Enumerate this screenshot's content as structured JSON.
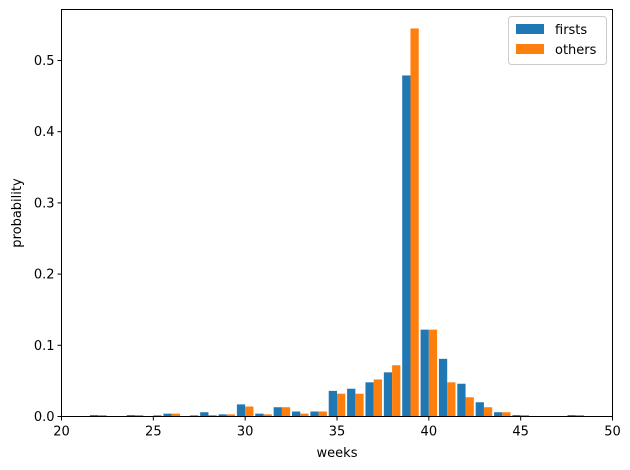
{
  "chart_data": {
    "type": "bar",
    "title": "",
    "xlabel": "weeks",
    "ylabel": "probability",
    "xlim": [
      20,
      50
    ],
    "ylim": [
      0,
      0.57
    ],
    "xticks": [
      20,
      25,
      30,
      35,
      40,
      45,
      50
    ],
    "xtick_labels": [
      "20",
      "25",
      "30",
      "35",
      "40",
      "45",
      "50"
    ],
    "yticks": [
      0.0,
      0.1,
      0.2,
      0.3,
      0.4,
      0.5
    ],
    "ytick_labels": [
      "0.0",
      "0.1",
      "0.2",
      "0.3",
      "0.4",
      "0.5"
    ],
    "grid": false,
    "legend_position": "upper right",
    "x": [
      22,
      24,
      25,
      26,
      27,
      28,
      29,
      30,
      31,
      32,
      33,
      34,
      35,
      36,
      37,
      38,
      39,
      40,
      41,
      42,
      43,
      44,
      45,
      48
    ],
    "series": [
      {
        "name": "firsts",
        "color": "#1f77b4",
        "values": [
          0.002,
          0.002,
          0.0,
          0.004,
          0.0,
          0.006,
          0.003,
          0.017,
          0.004,
          0.013,
          0.007,
          0.007,
          0.036,
          0.039,
          0.048,
          0.062,
          0.479,
          0.122,
          0.081,
          0.046,
          0.02,
          0.006,
          0.002,
          0.002
        ]
      },
      {
        "name": "others",
        "color": "#ff7f0e",
        "values": [
          0.002,
          0.002,
          0.002,
          0.004,
          0.002,
          0.002,
          0.003,
          0.014,
          0.003,
          0.013,
          0.004,
          0.007,
          0.032,
          0.032,
          0.052,
          0.072,
          0.545,
          0.122,
          0.048,
          0.027,
          0.013,
          0.006,
          0.002,
          0.002
        ]
      }
    ]
  }
}
